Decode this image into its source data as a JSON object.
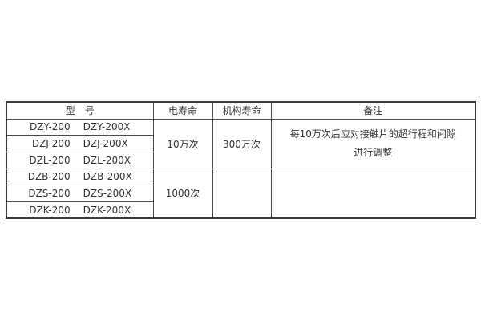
{
  "page": {
    "background": "#ffffff"
  },
  "colors": {
    "table_border": "#3c3c3c",
    "cell_border": "#4a4a4a",
    "text": "#333333"
  },
  "table": {
    "headers": {
      "model": "型　号",
      "electrical_life": "电寿命",
      "mechanism_life": "机构寿命",
      "remarks": "备注"
    },
    "model_rows": [
      {
        "base": "DZY-200",
        "variant": "DZY-200X"
      },
      {
        "base": "DZJ-200",
        "variant": "DZJ-200X"
      },
      {
        "base": "DZL-200",
        "variant": "DZL-200X"
      },
      {
        "base": "DZB-200",
        "variant": "DZB-200X"
      },
      {
        "base": "DZS-200",
        "variant": "DZS-200X"
      },
      {
        "base": "DZK-200",
        "variant": "DZK-200X"
      }
    ],
    "groups": [
      {
        "electrical_life": "10万次",
        "mechanism_life": "300万次",
        "remark_lines": [
          "每10万次后应对接触片的超行程和间隙",
          "进行调整"
        ]
      },
      {
        "electrical_life": "1000次",
        "mechanism_life": "",
        "remark_lines": [
          "",
          ""
        ]
      }
    ]
  }
}
